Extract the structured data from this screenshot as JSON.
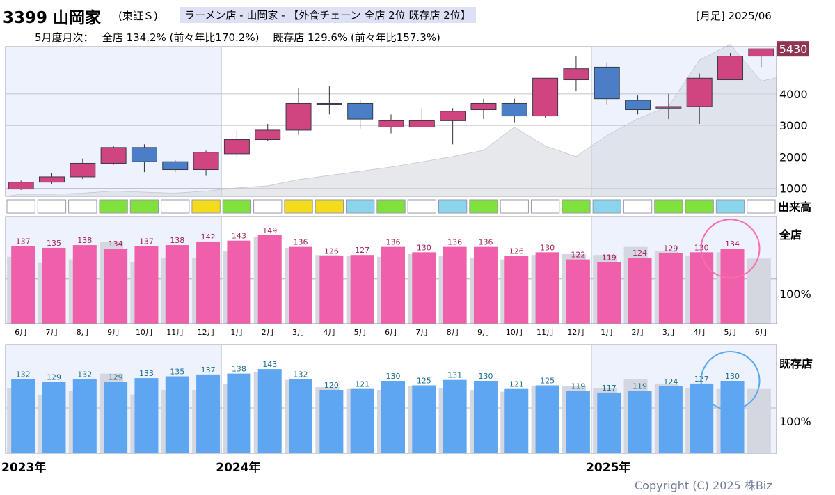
{
  "header": {
    "code_name": "3399 山岡家",
    "market": "(東証Ｓ)",
    "industry": "ラーメン店 - 山岡家 - 【外食チェーン 全店 2位 既存店 2位】",
    "period": "[月足] 2025/06",
    "summary": "5月度月次：　 全店 134.2% (前々年比170.2%)　 既存店 129.6% (前々年比157.3%)"
  },
  "labels": {
    "volume": "出来高",
    "all_stores": "全店",
    "existing_stores": "既存店",
    "pct_100": "100%",
    "last_price": "5430",
    "years": [
      "2023年",
      "2024年",
      "2025年"
    ]
  },
  "copyright": "Copyright (C) 2025 株Biz",
  "colors": {
    "up": "#d0457f",
    "down": "#4a7fc8",
    "all_bar": "#f060aa",
    "all_text": "#a8205e",
    "exist_bar": "#5ea6f2",
    "exist_text": "#1a6f8e",
    "circle_all": "#ff69b4",
    "circle_exist": "#55a9f0",
    "last_price_bg": "#8e3552"
  },
  "chart_data": [
    {
      "type": "candlestick",
      "title": "",
      "months": [
        "2023/06",
        "2023/07",
        "2023/08",
        "2023/09",
        "2023/10",
        "2023/11",
        "2023/12",
        "2024/01",
        "2024/02",
        "2024/03",
        "2024/04",
        "2024/05",
        "2024/06",
        "2024/07",
        "2024/08",
        "2024/09",
        "2024/10",
        "2024/11",
        "2024/12",
        "2025/01",
        "2025/02",
        "2025/03",
        "2025/04",
        "2025/05",
        "2025/06"
      ],
      "open": [
        980,
        1200,
        1370,
        1800,
        2300,
        1850,
        1600,
        2100,
        2550,
        2850,
        3700,
        3700,
        2950,
        2950,
        3150,
        3500,
        3700,
        3300,
        4450,
        4850,
        3800,
        3550,
        3600,
        4450,
        5200
      ],
      "high": [
        1250,
        1500,
        1950,
        2350,
        2400,
        1900,
        2200,
        2850,
        3050,
        4200,
        4250,
        3800,
        3350,
        3550,
        3550,
        3850,
        3850,
        4500,
        5200,
        5000,
        3950,
        4000,
        4650,
        5300,
        5430
      ],
      "low": [
        950,
        1150,
        1300,
        1750,
        1520,
        1520,
        1400,
        2000,
        2500,
        2700,
        3350,
        2900,
        2750,
        2950,
        2400,
        3200,
        3100,
        3250,
        4100,
        3650,
        3350,
        3200,
        3050,
        4450,
        4850
      ],
      "close": [
        1200,
        1370,
        1800,
        2300,
        1850,
        1600,
        2150,
        2550,
        2850,
        3700,
        3700,
        3200,
        3150,
        3150,
        3450,
        3700,
        3300,
        4500,
        4800,
        3850,
        3500,
        3600,
        4500,
        5200,
        5430
      ],
      "volume_colors": [
        "white",
        "white",
        "white",
        "green",
        "green",
        "white",
        "yellow",
        "green",
        "white",
        "yellow",
        "yellow",
        "cyan",
        "green",
        "white",
        "cyan",
        "green",
        "white",
        "white",
        "green",
        "cyan",
        "white",
        "green",
        "green",
        "cyan",
        "white"
      ],
      "volume_area": [
        0.02,
        0.02,
        0.03,
        0.05,
        0.04,
        0.03,
        0.05,
        0.08,
        0.1,
        0.16,
        0.2,
        0.24,
        0.28,
        0.33,
        0.38,
        0.44,
        0.66,
        0.48,
        0.38,
        0.58,
        0.74,
        0.86,
        1.3,
        1.45,
        1.1
      ],
      "ylim": [
        750,
        5500
      ],
      "yticks": [
        1000,
        2000,
        3000,
        4000
      ]
    },
    {
      "type": "bar",
      "title": "全店",
      "categories": [
        "6月",
        "7月",
        "8月",
        "9月",
        "10月",
        "11月",
        "12月",
        "1月",
        "2月",
        "3月",
        "4月",
        "5月",
        "6月",
        "7月",
        "8月",
        "9月",
        "10月",
        "11月",
        "12月",
        "1月",
        "2月",
        "3月",
        "4月",
        "5月",
        "6月"
      ],
      "values": [
        137,
        135,
        138,
        134,
        137,
        138,
        142,
        143,
        149,
        136,
        126,
        127,
        136,
        130,
        136,
        136,
        126,
        130,
        122,
        119,
        124,
        129,
        130,
        134,
        null
      ],
      "prior_year": [
        125,
        118,
        122,
        142,
        119,
        124,
        124,
        131,
        147,
        135,
        127,
        126,
        125,
        128,
        126,
        124,
        122,
        127,
        128,
        127,
        136,
        131,
        126,
        130,
        123
      ],
      "ylim": [
        50,
        170
      ]
    },
    {
      "type": "bar",
      "title": "既存店",
      "categories": [
        "6月",
        "7月",
        "8月",
        "9月",
        "10月",
        "11月",
        "12月",
        "1月",
        "2月",
        "3月",
        "4月",
        "5月",
        "6月",
        "7月",
        "8月",
        "9月",
        "10月",
        "11月",
        "12月",
        "1月",
        "2月",
        "3月",
        "4月",
        "5月",
        "6月"
      ],
      "values": [
        132,
        129,
        132,
        129,
        133,
        135,
        137,
        138,
        143,
        132,
        120,
        121,
        130,
        125,
        131,
        130,
        121,
        125,
        119,
        117,
        119,
        124,
        127,
        130,
        null
      ],
      "prior_year": [
        122,
        114,
        119,
        138,
        115,
        120,
        120,
        127,
        140,
        131,
        123,
        121,
        120,
        124,
        122,
        120,
        118,
        124,
        124,
        122,
        132,
        127,
        122,
        121,
        121
      ],
      "ylim": [
        50,
        170
      ]
    }
  ]
}
